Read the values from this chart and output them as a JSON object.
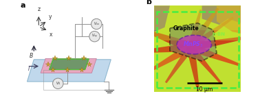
{
  "fig_width": 3.78,
  "fig_height": 1.4,
  "dpi": 100,
  "panel_a_label": "a",
  "panel_b_label": "b",
  "label_fontsize": 8,
  "label_fontweight": "bold",
  "background": "#ffffff",
  "panel_a": {
    "substrate_color": "#c0d8ec",
    "substrate_edge": "#90b8d0",
    "mnps3_color": "#e8a8c0",
    "mnps3_edge": "#c080a0",
    "graphite_color": "#70966a",
    "graphite_edge": "#50a040",
    "electrode_color": "#d4a830",
    "wire_color": "#909090",
    "voltmeter_color": "#e8e8e8",
    "voltmeter_border": "#888888",
    "B_arrow_color": "#303040",
    "I_arrow_color": "#404060",
    "axis_color": "#404040"
  },
  "panel_b": {
    "bg_yellow_green": "#c8e830",
    "bg_red": "#e03010",
    "bg_orange": "#e86010",
    "bg_purple": "#7030a0",
    "bg_dark_red": "#c02010",
    "outer_border_color": "#44ee44",
    "graphite_outline_color": "#000000",
    "mnps3_fill": "#c030c0",
    "mnps3_outline_color": "#6020a0",
    "hbn_label_color": "#88ee44",
    "graphite_label_color": "#000000",
    "mnps3_label_color": "#8844ff",
    "scalebar_color": "#000000",
    "scalebar_text": "10 μm"
  }
}
